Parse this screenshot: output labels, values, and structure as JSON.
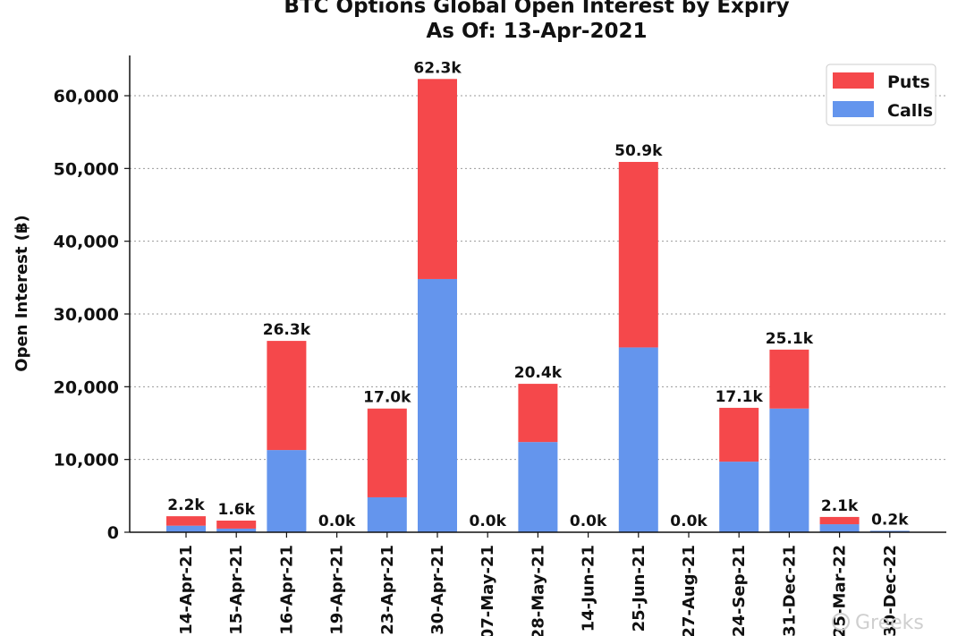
{
  "chart_data": {
    "type": "bar",
    "stacked": true,
    "title": "BTC Options Global Open Interest by Expiry",
    "subtitle": "As Of: 13-Apr-2021",
    "xlabel": "",
    "ylabel": "Open Interest (฿)",
    "ylim": [
      0,
      65000
    ],
    "yticks": [
      0,
      10000,
      20000,
      30000,
      40000,
      50000,
      60000
    ],
    "ytick_labels": [
      "0",
      "10,000",
      "20,000",
      "30,000",
      "40,000",
      "50,000",
      "60,000"
    ],
    "grid": "horizontal-dotted",
    "legend_position": "top-right",
    "categories": [
      "14-Apr-21",
      "15-Apr-21",
      "16-Apr-21",
      "19-Apr-21",
      "23-Apr-21",
      "30-Apr-21",
      "07-May-21",
      "28-May-21",
      "14-Jun-21",
      "25-Jun-21",
      "27-Aug-21",
      "24-Sep-21",
      "31-Dec-21",
      "25-Mar-22",
      "30-Dec-22"
    ],
    "series": [
      {
        "name": "Calls",
        "color": "#6495ED",
        "values": [
          900,
          500,
          11300,
          0,
          4800,
          34800,
          0,
          12400,
          0,
          25400,
          0,
          9700,
          17000,
          1100,
          200
        ]
      },
      {
        "name": "Puts",
        "color": "#F5484B",
        "values": [
          1300,
          1100,
          15000,
          0,
          12200,
          27500,
          0,
          8000,
          0,
          25500,
          0,
          7400,
          8100,
          1000,
          0
        ]
      }
    ],
    "totals_labels": [
      "2.2k",
      "1.6k",
      "26.3k",
      "0.0k",
      "17.0k",
      "62.3k",
      "0.0k",
      "20.4k",
      "0.0k",
      "50.9k",
      "0.0k",
      "17.1k",
      "25.1k",
      "2.1k",
      "0.2k"
    ],
    "legend": [
      {
        "name": "Puts",
        "color": "#F5484B"
      },
      {
        "name": "Calls",
        "color": "#6495ED"
      }
    ]
  },
  "watermark": "Greeks"
}
